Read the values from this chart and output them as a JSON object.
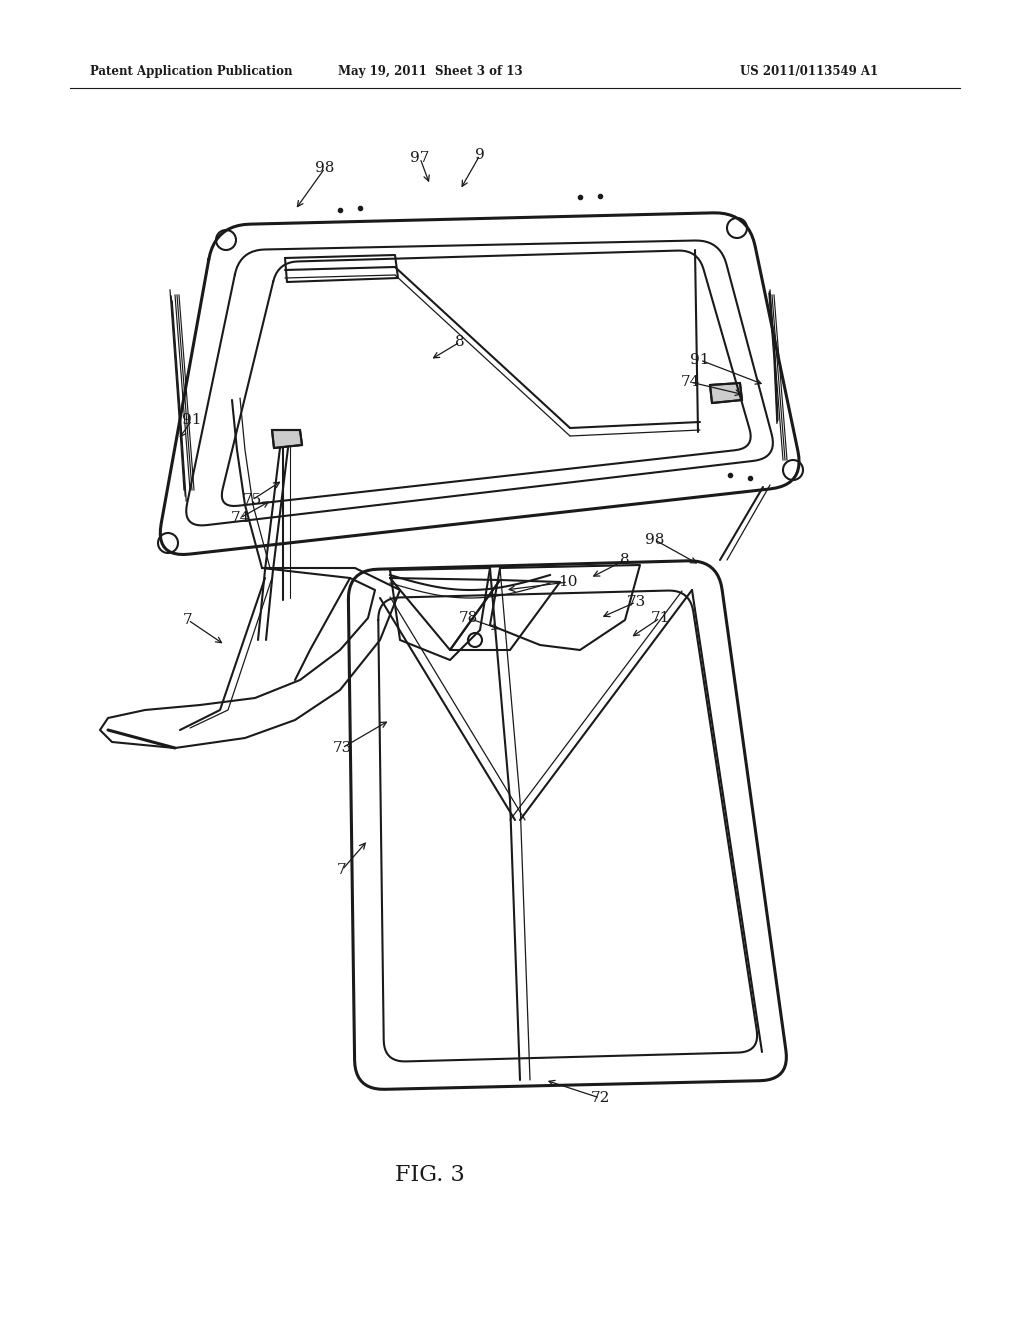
{
  "bg_color": "#ffffff",
  "line_color": "#1a1a1a",
  "text_color": "#1a1a1a",
  "header_left": "Patent Application Publication",
  "header_mid": "May 19, 2011  Sheet 3 of 13",
  "header_right": "US 2011/0113549 A1",
  "fig_label": "FIG. 3",
  "figsize": [
    10.24,
    13.2
  ],
  "dpi": 100,
  "lw_main": 1.5,
  "lw_thick": 2.2,
  "lw_thin": 0.9
}
